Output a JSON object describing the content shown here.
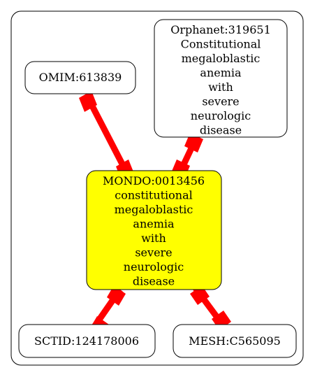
{
  "diagram": {
    "nodes": {
      "omim": {
        "id": "OMIM:613839",
        "lines": []
      },
      "orphanet": {
        "id": "Orphanet:319651",
        "lines": [
          "Constitutional",
          "megaloblastic",
          "anemia",
          "with",
          "severe",
          "neurologic",
          "disease"
        ]
      },
      "mondo": {
        "id": "MONDO:0013456",
        "lines": [
          "constitutional",
          "megaloblastic",
          "anemia",
          "with",
          "severe",
          "neurologic",
          "disease"
        ],
        "fill": "#ffff00"
      },
      "sctid": {
        "id": "SCTID:124178006",
        "lines": []
      },
      "mesh": {
        "id": "MESH:C565095",
        "lines": []
      }
    },
    "edges": [
      {
        "from": "omim",
        "to": "mondo"
      },
      {
        "from": "orphanet",
        "to": "mondo"
      },
      {
        "from": "mondo",
        "to": "sctid"
      },
      {
        "from": "mondo",
        "to": "mesh"
      }
    ],
    "edge_color": "#ff0000",
    "node_fill": "#ffffff"
  }
}
